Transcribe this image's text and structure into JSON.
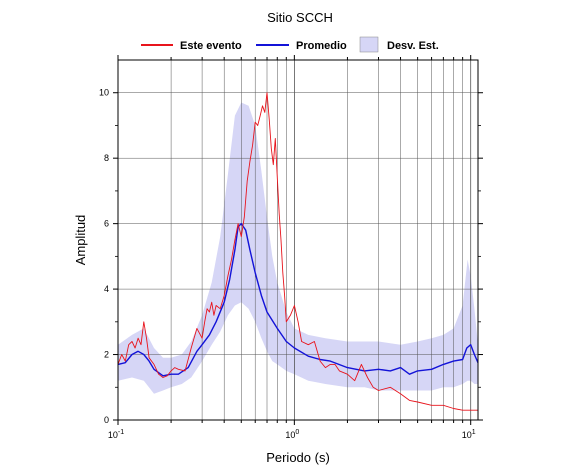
{
  "chart_data": {
    "type": "line",
    "title": "Sitio SCCH",
    "xlabel": "Periodo (s)",
    "ylabel": "Amplitud",
    "x_scale": "log",
    "xlim": [
      0.1,
      11
    ],
    "ylim": [
      0,
      11
    ],
    "x_ticks": [
      {
        "value": 0.1,
        "base": "10",
        "exp": "-1"
      },
      {
        "value": 1,
        "base": "10",
        "exp": "0"
      },
      {
        "value": 10,
        "base": "10",
        "exp": "1"
      }
    ],
    "y_ticks": [
      {
        "value": 0,
        "label": "0"
      },
      {
        "value": 2,
        "label": "2"
      },
      {
        "value": 4,
        "label": "4"
      },
      {
        "value": 6,
        "label": "6"
      },
      {
        "value": 8,
        "label": "8"
      },
      {
        "value": 10,
        "label": "10"
      }
    ],
    "grid": true,
    "legend_position": "top",
    "legend": [
      {
        "label": "Este evento",
        "kind": "line",
        "color": "#e8141c"
      },
      {
        "label": "Promedio",
        "kind": "line",
        "color": "#1313d8"
      },
      {
        "label": "Desv. Est.",
        "kind": "band",
        "color": "#d6d6f6"
      }
    ],
    "band": {
      "name": "Desv. Est.",
      "color": "#d6d6f6",
      "x": [
        0.1,
        0.12,
        0.14,
        0.16,
        0.18,
        0.2,
        0.23,
        0.26,
        0.3,
        0.34,
        0.38,
        0.42,
        0.46,
        0.5,
        0.55,
        0.6,
        0.65,
        0.7,
        0.75,
        0.8,
        0.9,
        1.0,
        1.2,
        1.5,
        2.0,
        2.5,
        3.0,
        4.0,
        5.0,
        6.0,
        7.0,
        8.0,
        9.0,
        9.6,
        10.0,
        10.5,
        11.0
      ],
      "upper": [
        2.3,
        2.6,
        2.8,
        2.2,
        1.9,
        1.9,
        2.0,
        2.4,
        3.2,
        4.2,
        5.6,
        7.5,
        9.3,
        9.7,
        9.6,
        9.0,
        7.6,
        6.2,
        5.0,
        4.2,
        3.3,
        2.8,
        2.6,
        2.5,
        2.4,
        2.4,
        2.4,
        2.3,
        2.4,
        2.5,
        2.6,
        2.8,
        3.5,
        4.9,
        4.4,
        3.4,
        2.3
      ],
      "lower": [
        1.2,
        1.3,
        1.2,
        0.8,
        0.9,
        1.0,
        1.1,
        1.3,
        1.8,
        2.3,
        2.7,
        3.2,
        3.5,
        3.6,
        3.4,
        3.0,
        2.5,
        2.1,
        1.8,
        1.7,
        1.5,
        1.4,
        1.2,
        1.1,
        1.0,
        1.0,
        0.9,
        0.9,
        0.9,
        0.9,
        1.0,
        1.0,
        1.1,
        1.2,
        1.2,
        1.1,
        1.1
      ]
    },
    "series": [
      {
        "name": "Promedio",
        "color": "#1313d8",
        "width": 1.4,
        "x": [
          0.1,
          0.11,
          0.12,
          0.13,
          0.14,
          0.15,
          0.16,
          0.18,
          0.2,
          0.22,
          0.25,
          0.28,
          0.3,
          0.33,
          0.36,
          0.4,
          0.43,
          0.46,
          0.48,
          0.5,
          0.53,
          0.56,
          0.6,
          0.65,
          0.7,
          0.8,
          0.9,
          1.0,
          1.2,
          1.4,
          1.6,
          2.0,
          2.5,
          3.0,
          3.5,
          4.0,
          4.5,
          5.0,
          6.0,
          7.0,
          8.0,
          9.0,
          9.5,
          10.0,
          10.5,
          11.0
        ],
        "y": [
          1.7,
          1.75,
          2.0,
          2.1,
          2.0,
          1.8,
          1.55,
          1.35,
          1.4,
          1.4,
          1.6,
          2.1,
          2.3,
          2.6,
          3.0,
          3.6,
          4.3,
          5.2,
          5.9,
          6.0,
          5.8,
          5.2,
          4.5,
          3.8,
          3.3,
          2.8,
          2.4,
          2.2,
          1.95,
          1.85,
          1.8,
          1.6,
          1.5,
          1.55,
          1.5,
          1.6,
          1.4,
          1.5,
          1.55,
          1.7,
          1.8,
          1.85,
          2.2,
          2.3,
          2.0,
          1.75
        ]
      },
      {
        "name": "Este evento",
        "color": "#e8141c",
        "width": 0.9,
        "x": [
          0.1,
          0.105,
          0.11,
          0.115,
          0.12,
          0.125,
          0.13,
          0.135,
          0.14,
          0.145,
          0.15,
          0.16,
          0.17,
          0.18,
          0.19,
          0.2,
          0.21,
          0.22,
          0.24,
          0.26,
          0.28,
          0.3,
          0.31,
          0.32,
          0.33,
          0.34,
          0.35,
          0.36,
          0.38,
          0.4,
          0.42,
          0.44,
          0.46,
          0.48,
          0.5,
          0.52,
          0.54,
          0.56,
          0.58,
          0.6,
          0.62,
          0.64,
          0.66,
          0.68,
          0.7,
          0.72,
          0.74,
          0.76,
          0.78,
          0.8,
          0.82,
          0.84,
          0.86,
          0.88,
          0.9,
          0.95,
          1.0,
          1.05,
          1.1,
          1.2,
          1.3,
          1.4,
          1.5,
          1.6,
          1.7,
          1.8,
          2.0,
          2.2,
          2.4,
          2.6,
          2.8,
          3.0,
          3.5,
          4.0,
          4.5,
          5.0,
          6.0,
          7.0,
          8.0,
          9.0,
          10.0,
          11.0
        ],
        "y": [
          1.7,
          2.0,
          1.8,
          2.3,
          2.4,
          2.2,
          2.5,
          2.3,
          3.0,
          2.5,
          1.9,
          1.7,
          1.4,
          1.3,
          1.35,
          1.5,
          1.6,
          1.55,
          1.5,
          2.2,
          2.8,
          2.5,
          3.0,
          3.4,
          3.3,
          3.6,
          3.2,
          3.5,
          3.4,
          3.8,
          4.4,
          4.9,
          5.5,
          6.0,
          5.6,
          6.2,
          7.3,
          7.9,
          8.4,
          9.1,
          9.0,
          9.3,
          9.6,
          9.4,
          10.0,
          9.2,
          8.3,
          7.8,
          8.6,
          7.4,
          6.3,
          5.5,
          4.5,
          3.8,
          3.0,
          3.2,
          3.5,
          3.0,
          2.4,
          2.3,
          2.4,
          1.8,
          1.6,
          1.7,
          1.7,
          1.5,
          1.4,
          1.2,
          1.7,
          1.3,
          1.0,
          0.9,
          1.0,
          0.8,
          0.6,
          0.55,
          0.45,
          0.45,
          0.35,
          0.3,
          0.3,
          0.3
        ]
      }
    ]
  }
}
